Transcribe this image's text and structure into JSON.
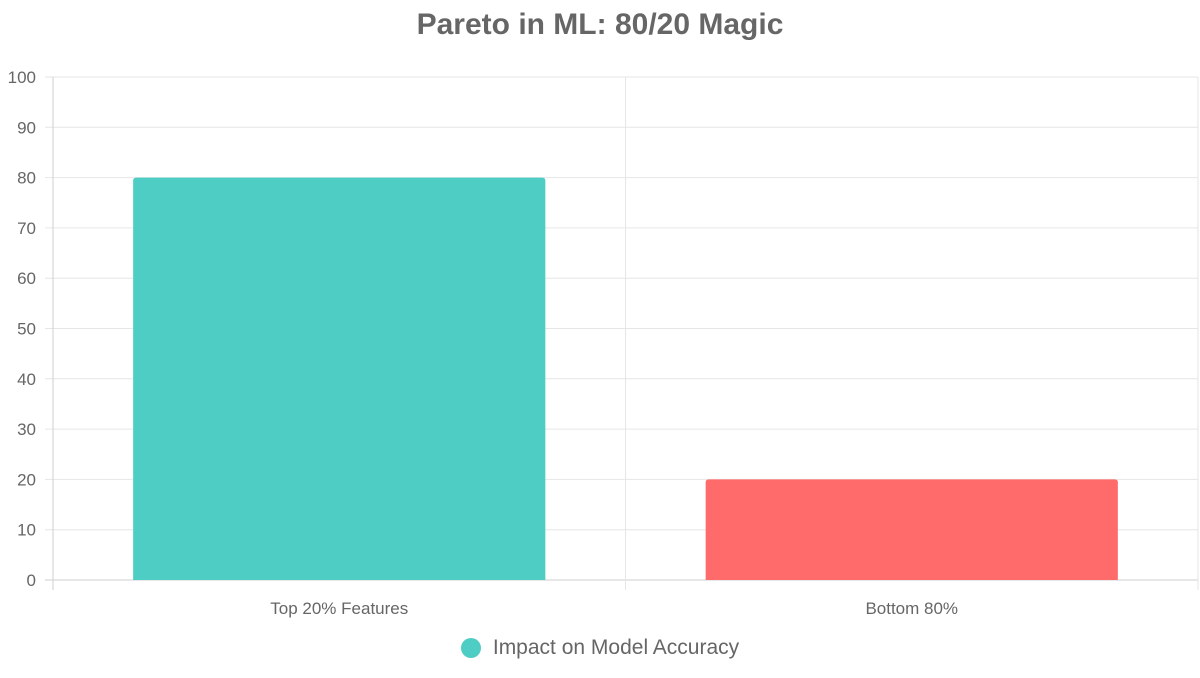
{
  "chart_data": {
    "type": "bar",
    "title": "Pareto in ML: 80/20 Magic",
    "categories": [
      "Top 20% Features",
      "Bottom 80%"
    ],
    "series": [
      {
        "name": "Impact on Model Accuracy",
        "values": [
          80,
          20
        ],
        "colors": [
          "#4ECDC4",
          "#FF6B6B"
        ]
      }
    ],
    "xlabel": "",
    "ylabel": "",
    "ylim": [
      0,
      100
    ],
    "yticks": [
      0,
      10,
      20,
      30,
      40,
      50,
      60,
      70,
      80,
      90,
      100
    ],
    "grid": true,
    "legend_position": "bottom"
  }
}
